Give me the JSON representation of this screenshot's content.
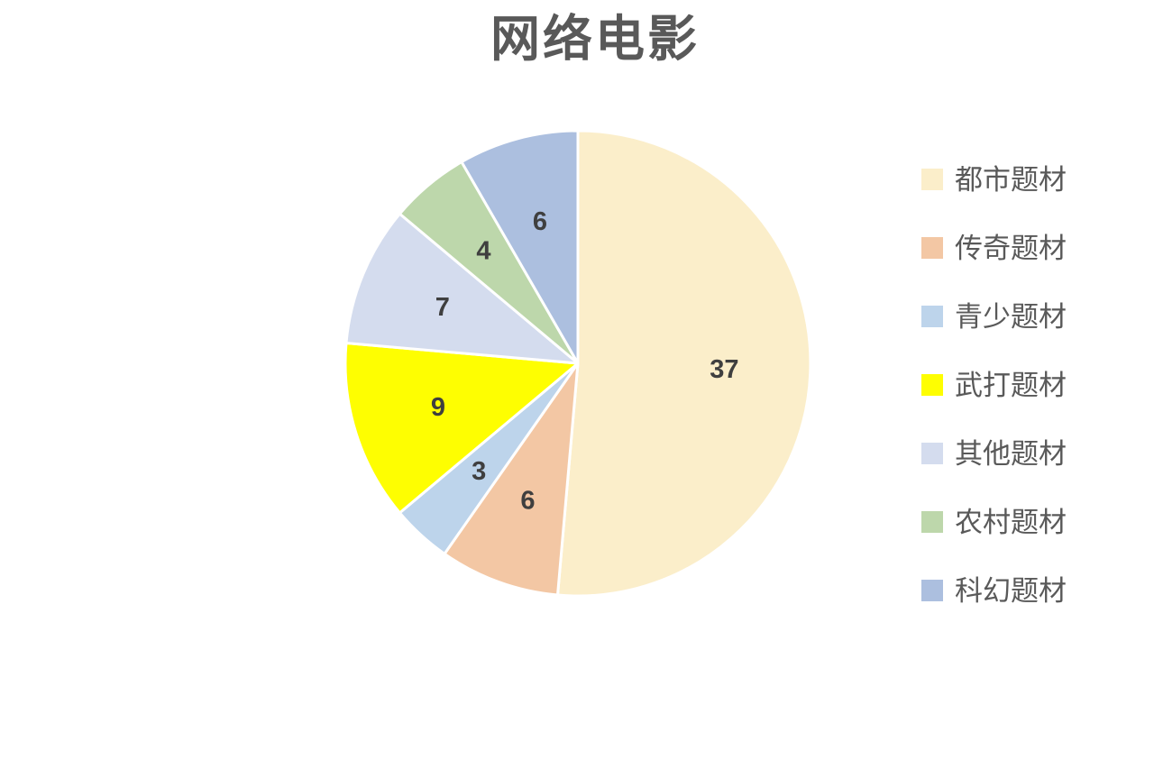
{
  "title": "网络电影",
  "chart_data": {
    "type": "pie",
    "title": "网络电影",
    "legend_position": "right",
    "start_angle_deg": 0,
    "direction": "clockwise",
    "total": 72,
    "slices": [
      {
        "label": "都市题材",
        "value": 37,
        "color": "#FBEECA"
      },
      {
        "label": "传奇题材",
        "value": 6,
        "color": "#F3C7A4"
      },
      {
        "label": "青少题材",
        "value": 3,
        "color": "#BDD4EB"
      },
      {
        "label": "武打题材",
        "value": 9,
        "color": "#FEFE01"
      },
      {
        "label": "其他题材",
        "value": 7,
        "color": "#D4DCEE"
      },
      {
        "label": "农村题材",
        "value": 4,
        "color": "#BDD7AB"
      },
      {
        "label": "科幻题材",
        "value": 6,
        "color": "#ACBFDF"
      }
    ]
  },
  "styles": {
    "background": "#FFFFFF",
    "title_color": "#595959",
    "legend_text_color": "#595959",
    "data_label_color": "#3F3F3F",
    "slice_border_color": "#FFFFFF"
  }
}
